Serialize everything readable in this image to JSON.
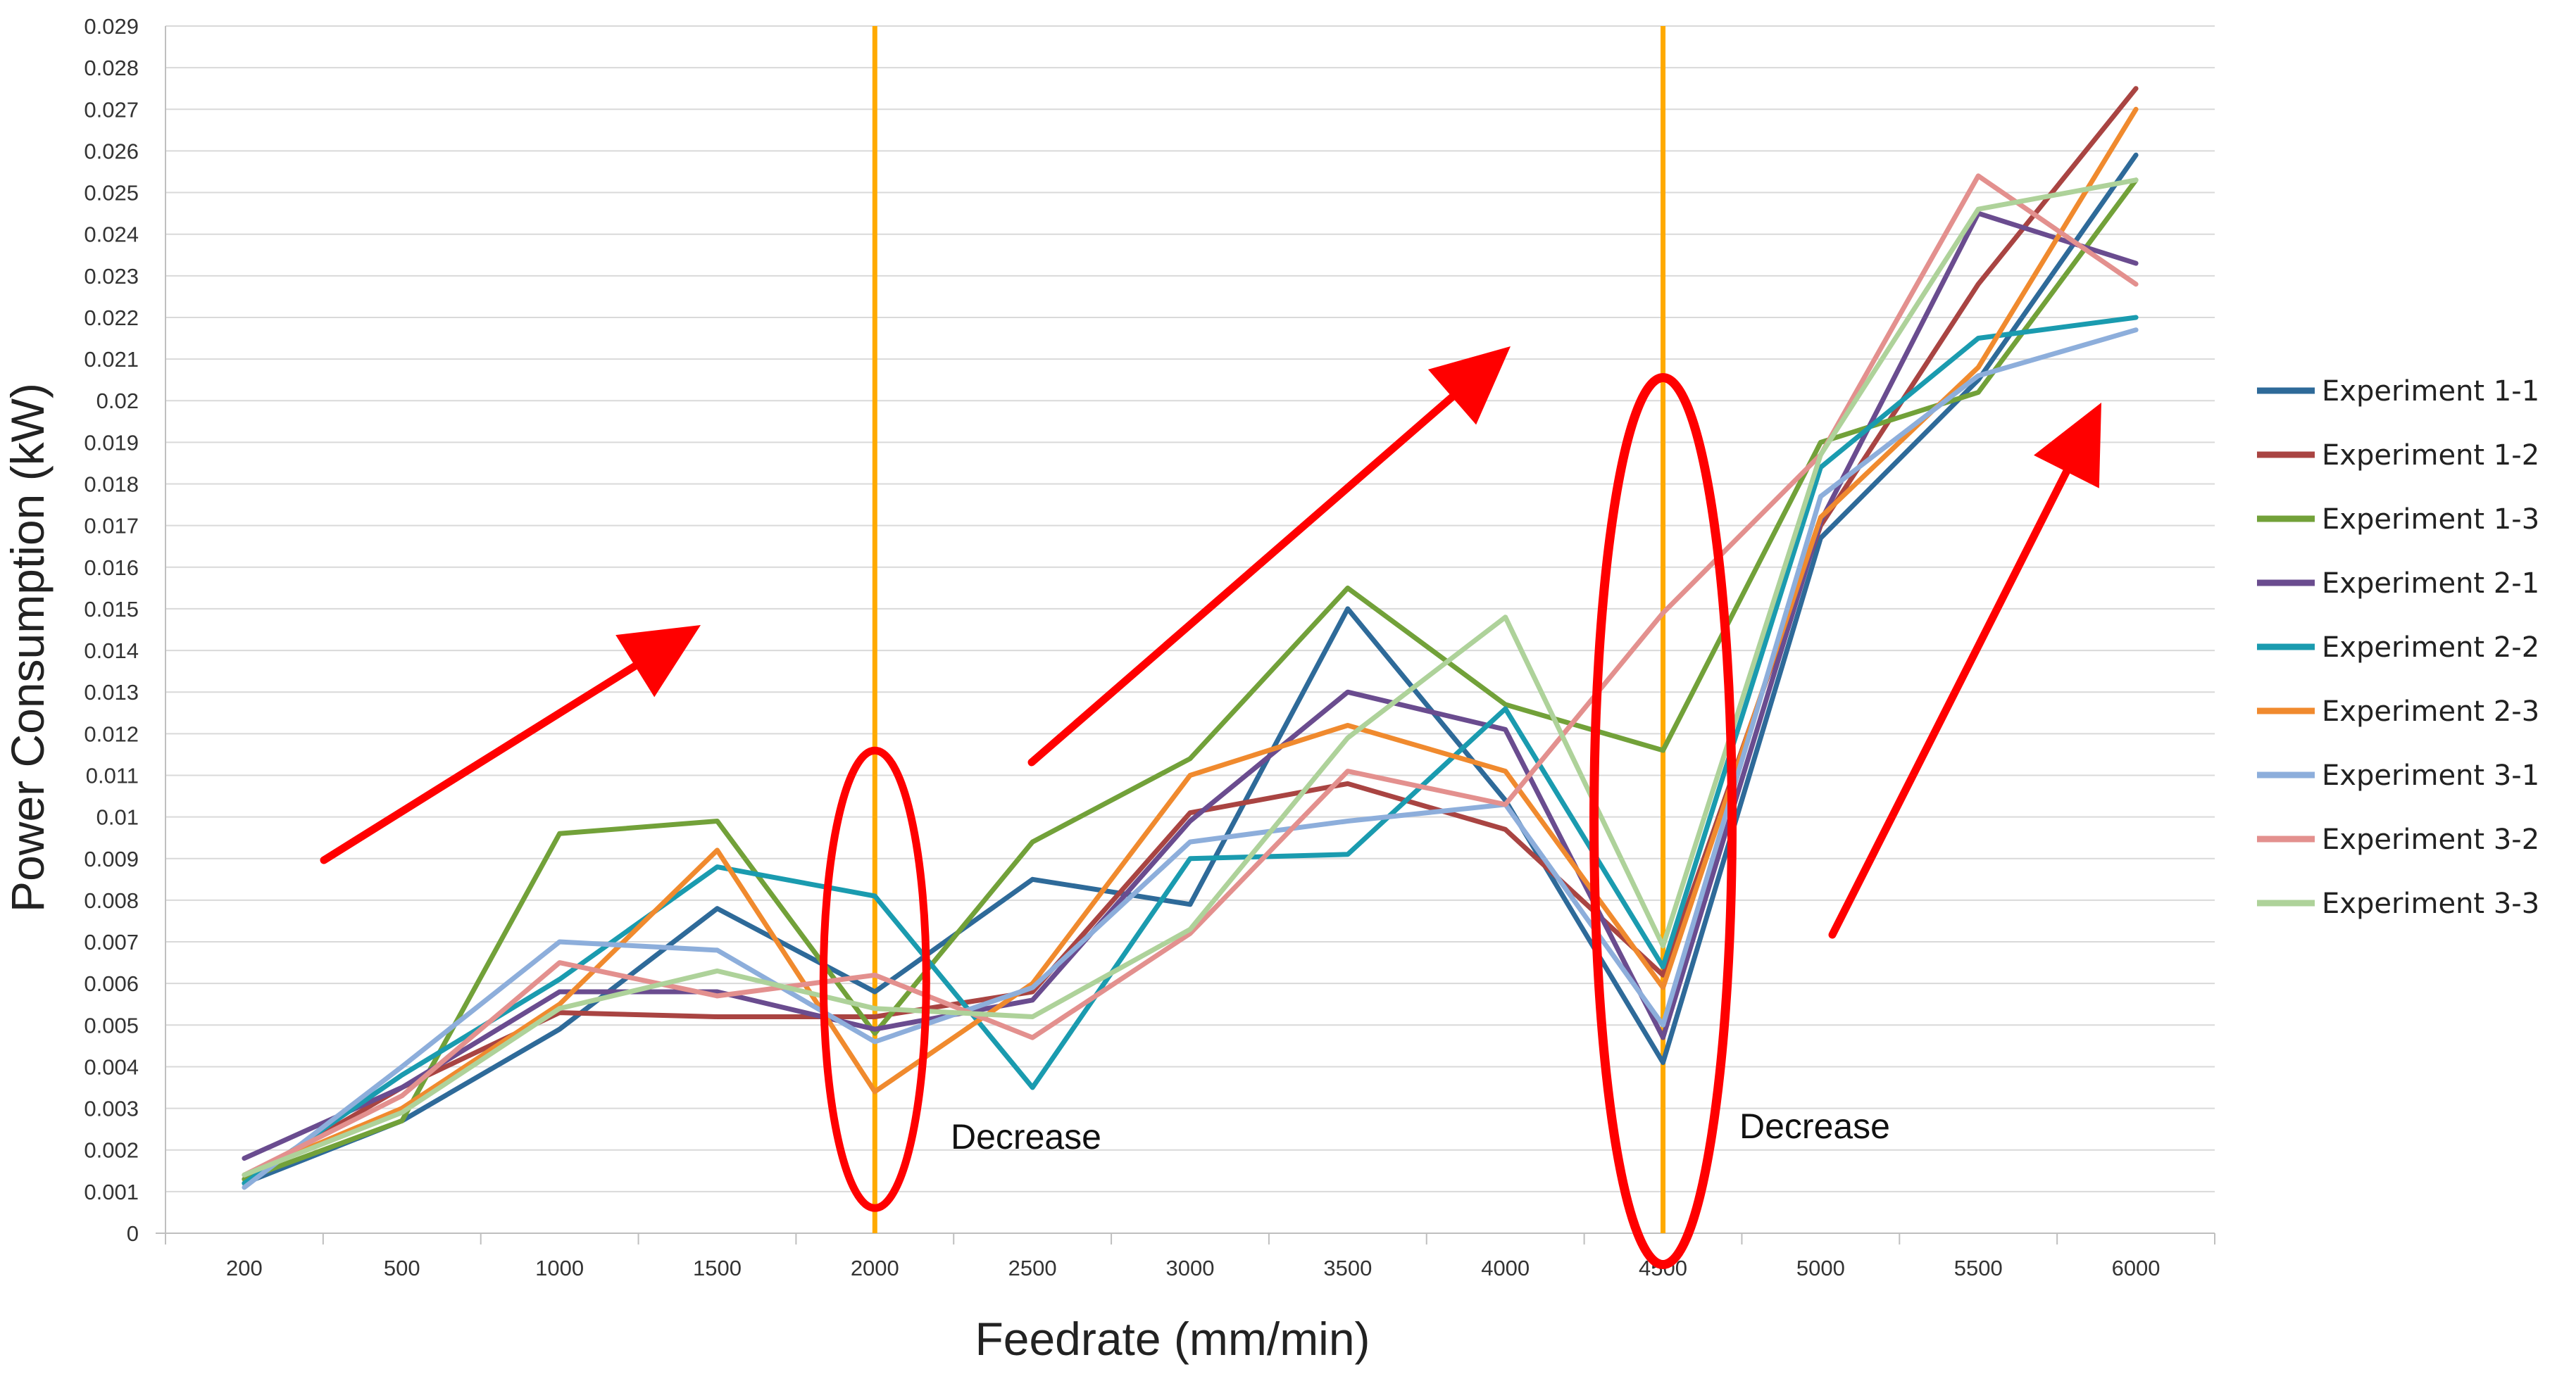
{
  "chart_data": {
    "type": "line",
    "title": "",
    "xlabel": "Feedrate (mm/min)",
    "ylabel": "Power Consumption (kW)",
    "categories": [
      "200",
      "500",
      "1000",
      "1500",
      "2000",
      "2500",
      "3000",
      "3500",
      "4000",
      "4500",
      "5000",
      "5500",
      "6000"
    ],
    "ylim": [
      0,
      0.029
    ],
    "yticks": [
      "0",
      "0.001",
      "0.002",
      "0.003",
      "0.004",
      "0.005",
      "0.006",
      "0.007",
      "0.008",
      "0.009",
      "0.01",
      "0.011",
      "0.012",
      "0.013",
      "0.014",
      "0.015",
      "0.016",
      "0.017",
      "0.018",
      "0.019",
      "0.02",
      "0.021",
      "0.022",
      "0.023",
      "0.024",
      "0.025",
      "0.026",
      "0.027",
      "0.028",
      "0.029"
    ],
    "grid": true,
    "legend_position": "right",
    "series": [
      {
        "name": "Experiment 1-1",
        "color": "#2E6A99",
        "values": [
          0.0012,
          0.0027,
          0.0049,
          0.0078,
          0.0058,
          0.0085,
          0.0079,
          0.015,
          0.0104,
          0.0041,
          0.0167,
          0.0205,
          0.0259
        ]
      },
      {
        "name": "Experiment 1-2",
        "color": "#A94442",
        "values": [
          0.0013,
          0.0035,
          0.0053,
          0.0052,
          0.0052,
          0.0058,
          0.0101,
          0.0108,
          0.0097,
          0.0062,
          0.017,
          0.0228,
          0.0275
        ]
      },
      {
        "name": "Experiment 1-3",
        "color": "#72A139",
        "values": [
          0.0013,
          0.0027,
          0.0096,
          0.0099,
          0.0048,
          0.0094,
          0.0114,
          0.0155,
          0.0127,
          0.0116,
          0.019,
          0.0202,
          0.0253
        ]
      },
      {
        "name": "Experiment 2-1",
        "color": "#6A4C8F",
        "values": [
          0.0018,
          0.0035,
          0.0058,
          0.0058,
          0.0049,
          0.0056,
          0.0099,
          0.013,
          0.0121,
          0.0047,
          0.0171,
          0.0245,
          0.0233
        ]
      },
      {
        "name": "Experiment 2-2",
        "color": "#1A9BAF",
        "values": [
          0.0012,
          0.0038,
          0.0061,
          0.0088,
          0.0081,
          0.0035,
          0.009,
          0.0091,
          0.0126,
          0.0064,
          0.0184,
          0.0215,
          0.022
        ]
      },
      {
        "name": "Experiment 2-3",
        "color": "#F08A2E",
        "values": [
          0.0014,
          0.003,
          0.0055,
          0.0092,
          0.0034,
          0.006,
          0.011,
          0.0122,
          0.0111,
          0.0059,
          0.0172,
          0.0208,
          0.027
        ]
      },
      {
        "name": "Experiment 3-1",
        "color": "#8DAEDB",
        "values": [
          0.0011,
          0.004,
          0.007,
          0.0068,
          0.0046,
          0.0059,
          0.0094,
          0.0099,
          0.0103,
          0.005,
          0.0177,
          0.0206,
          0.0217
        ]
      },
      {
        "name": "Experiment 3-2",
        "color": "#E3908E",
        "values": [
          0.0014,
          0.0033,
          0.0065,
          0.0057,
          0.0062,
          0.0047,
          0.0072,
          0.0111,
          0.0103,
          0.0149,
          0.0187,
          0.0254,
          0.0228
        ]
      },
      {
        "name": "Experiment 3-3",
        "color": "#AED29A",
        "values": [
          0.0014,
          0.0029,
          0.0054,
          0.0063,
          0.0054,
          0.0052,
          0.0073,
          0.0119,
          0.0148,
          0.0069,
          0.0187,
          0.0246,
          0.0253
        ]
      }
    ],
    "annotations": [
      {
        "text": "Decrease",
        "near": "2000"
      },
      {
        "text": "Decrease",
        "near": "4500"
      }
    ],
    "marker_lines_at": [
      "2000",
      "4500"
    ],
    "colors": {
      "marker_line": "#FFAA00",
      "highlight": "#FF0000",
      "grid": "#D9D9D9"
    }
  }
}
